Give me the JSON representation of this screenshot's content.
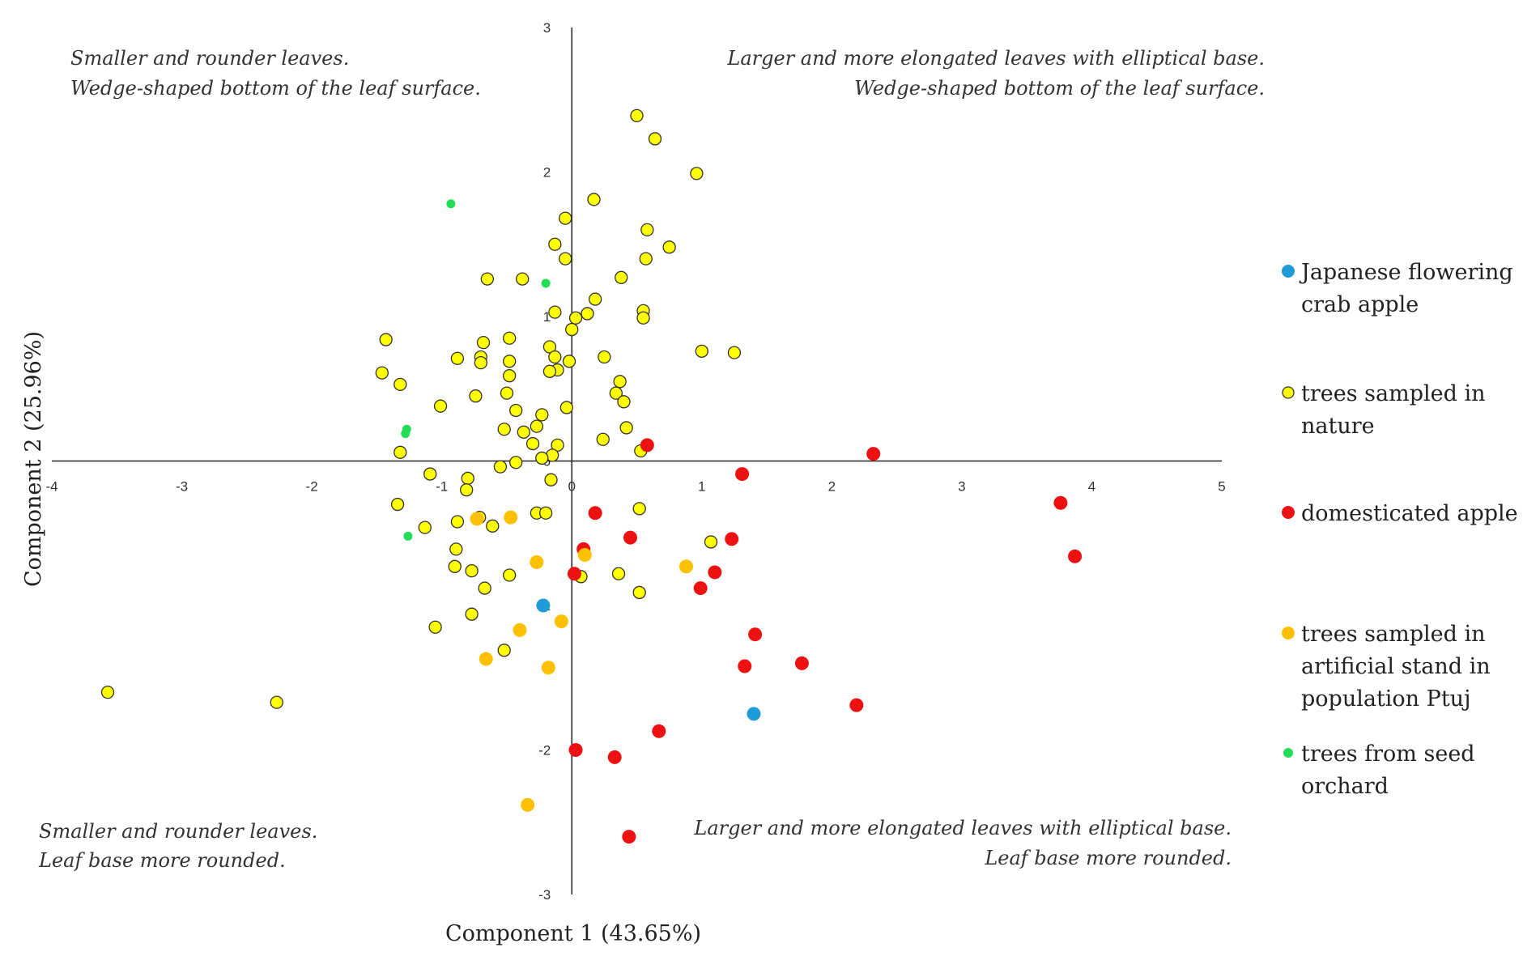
{
  "chart_data": {
    "type": "scatter",
    "title": "",
    "xlabel": "Component 1 (43.65%)",
    "ylabel": "Component 2 (25.96%)",
    "xlim": [
      -4,
      5
    ],
    "ylim": [
      -3,
      3
    ],
    "x_ticks": [
      -4,
      -3,
      -2,
      -1,
      0,
      1,
      2,
      3,
      4,
      5
    ],
    "y_ticks": [
      3,
      2,
      1,
      0,
      -1,
      -2,
      -3
    ],
    "grid": false,
    "legend_position": "right",
    "annotations": {
      "top_left": [
        "Smaller and rounder leaves.",
        "Wedge-shaped bottom of the leaf surface."
      ],
      "top_right": [
        "Larger and more elongated leaves with elliptical base.",
        "Wedge-shaped bottom of the leaf surface."
      ],
      "bottom_left": [
        "Smaller and rounder leaves.",
        "Leaf base more rounded."
      ],
      "bottom_right": [
        "Larger and more elongated leaves with elliptical base.",
        "Leaf base more rounded."
      ]
    },
    "series": [
      {
        "name": "Japanese flowering crab apple",
        "legend_lines": [
          "Japanese flowering",
          "crab apple"
        ],
        "color": "#1f9bd7",
        "outline": false,
        "points": [
          [
            -0.22,
            -1.0
          ],
          [
            1.4,
            -1.75
          ]
        ]
      },
      {
        "name": "trees sampled in nature",
        "legend_lines": [
          "trees sampled in",
          "nature"
        ],
        "color": "#ffff00",
        "outline": true,
        "points": [
          [
            0.5,
            2.39
          ],
          [
            0.64,
            2.23
          ],
          [
            0.96,
            1.99
          ],
          [
            0.17,
            1.81
          ],
          [
            -0.05,
            1.68
          ],
          [
            0.58,
            1.6
          ],
          [
            -0.13,
            1.5
          ],
          [
            0.75,
            1.48
          ],
          [
            -0.05,
            1.4
          ],
          [
            0.57,
            1.4
          ],
          [
            -0.65,
            1.26
          ],
          [
            -0.38,
            1.26
          ],
          [
            0.38,
            1.27
          ],
          [
            0.18,
            1.12
          ],
          [
            -0.13,
            1.03
          ],
          [
            0.55,
            1.04
          ],
          [
            0.12,
            1.02
          ],
          [
            0.03,
            0.99
          ],
          [
            0.55,
            0.99
          ],
          [
            0.0,
            0.91
          ],
          [
            -1.43,
            0.84
          ],
          [
            -0.48,
            0.85
          ],
          [
            -0.68,
            0.82
          ],
          [
            -0.17,
            0.79
          ],
          [
            -0.13,
            0.72
          ],
          [
            -0.7,
            0.72
          ],
          [
            -0.88,
            0.71
          ],
          [
            -0.7,
            0.68
          ],
          [
            -0.48,
            0.69
          ],
          [
            0.25,
            0.72
          ],
          [
            1.0,
            0.76
          ],
          [
            1.25,
            0.75
          ],
          [
            -0.02,
            0.69
          ],
          [
            -0.11,
            0.63
          ],
          [
            -0.17,
            0.62
          ],
          [
            -1.46,
            0.61
          ],
          [
            -0.48,
            0.59
          ],
          [
            0.37,
            0.55
          ],
          [
            -1.32,
            0.53
          ],
          [
            0.34,
            0.47
          ],
          [
            -0.5,
            0.47
          ],
          [
            0.4,
            0.41
          ],
          [
            -0.74,
            0.45
          ],
          [
            -1.01,
            0.38
          ],
          [
            -0.04,
            0.37
          ],
          [
            -0.43,
            0.35
          ],
          [
            -0.23,
            0.32
          ],
          [
            0.42,
            0.23
          ],
          [
            -0.27,
            0.24
          ],
          [
            -0.52,
            0.22
          ],
          [
            -0.37,
            0.2
          ],
          [
            0.24,
            0.15
          ],
          [
            -0.3,
            0.12
          ],
          [
            -0.11,
            0.11
          ],
          [
            -1.32,
            0.06
          ],
          [
            0.53,
            0.07
          ],
          [
            -0.43,
            -0.01
          ],
          [
            -0.15,
            0.04
          ],
          [
            -0.23,
            0.02
          ],
          [
            -0.55,
            -0.04
          ],
          [
            -1.09,
            -0.09
          ],
          [
            -0.8,
            -0.12
          ],
          [
            -0.16,
            -0.13
          ],
          [
            -0.81,
            -0.2
          ],
          [
            0.52,
            -0.33
          ],
          [
            -1.34,
            -0.3
          ],
          [
            -0.27,
            -0.36
          ],
          [
            -0.2,
            -0.36
          ],
          [
            -0.71,
            -0.39
          ],
          [
            -0.88,
            -0.42
          ],
          [
            -0.61,
            -0.45
          ],
          [
            -1.13,
            -0.46
          ],
          [
            1.07,
            -0.56
          ],
          [
            -0.89,
            -0.61
          ],
          [
            -0.9,
            -0.73
          ],
          [
            -0.77,
            -0.76
          ],
          [
            0.36,
            -0.78
          ],
          [
            0.07,
            -0.8
          ],
          [
            -0.48,
            -0.79
          ],
          [
            -0.67,
            -0.88
          ],
          [
            0.52,
            -0.91
          ],
          [
            -0.77,
            -1.06
          ],
          [
            -1.05,
            -1.15
          ],
          [
            -0.52,
            -1.31
          ],
          [
            -3.57,
            -1.6
          ],
          [
            -2.27,
            -1.67
          ]
        ]
      },
      {
        "name": "domesticated apple",
        "legend_lines": [
          "domesticated apple"
        ],
        "color": "#ee1111",
        "outline": false,
        "points": [
          [
            0.58,
            0.11
          ],
          [
            2.32,
            0.05
          ],
          [
            1.31,
            -0.09
          ],
          [
            3.76,
            -0.29
          ],
          [
            0.18,
            -0.36
          ],
          [
            1.23,
            -0.54
          ],
          [
            0.45,
            -0.53
          ],
          [
            0.09,
            -0.61
          ],
          [
            3.87,
            -0.66
          ],
          [
            1.1,
            -0.77
          ],
          [
            0.02,
            -0.78
          ],
          [
            0.99,
            -0.88
          ],
          [
            1.41,
            -1.2
          ],
          [
            1.77,
            -1.4
          ],
          [
            1.33,
            -1.42
          ],
          [
            2.19,
            -1.69
          ],
          [
            0.67,
            -1.87
          ],
          [
            0.03,
            -2.0
          ],
          [
            0.33,
            -2.05
          ],
          [
            0.44,
            -2.6
          ]
        ]
      },
      {
        "name": "trees sampled in artificial stand in population Ptuj",
        "legend_lines": [
          "trees sampled in",
          "artificial stand in",
          "population Ptuj"
        ],
        "color": "#ffc000",
        "outline": false,
        "points": [
          [
            -0.73,
            -0.4
          ],
          [
            -0.47,
            -0.39
          ],
          [
            0.1,
            -0.65
          ],
          [
            -0.27,
            -0.7
          ],
          [
            0.88,
            -0.73
          ],
          [
            -0.08,
            -1.11
          ],
          [
            -0.4,
            -1.17
          ],
          [
            -0.66,
            -1.37
          ],
          [
            -0.18,
            -1.43
          ],
          [
            -0.34,
            -2.38
          ]
        ]
      },
      {
        "name": "trees from seed orchard",
        "legend_lines": [
          "trees from seed",
          "orchard"
        ],
        "color": "#22dd55",
        "outline": false,
        "points": [
          [
            -0.93,
            1.78
          ],
          [
            -0.2,
            1.23
          ],
          [
            -1.27,
            0.22
          ],
          [
            -1.28,
            0.19
          ],
          [
            -1.26,
            -0.52
          ]
        ]
      }
    ]
  }
}
